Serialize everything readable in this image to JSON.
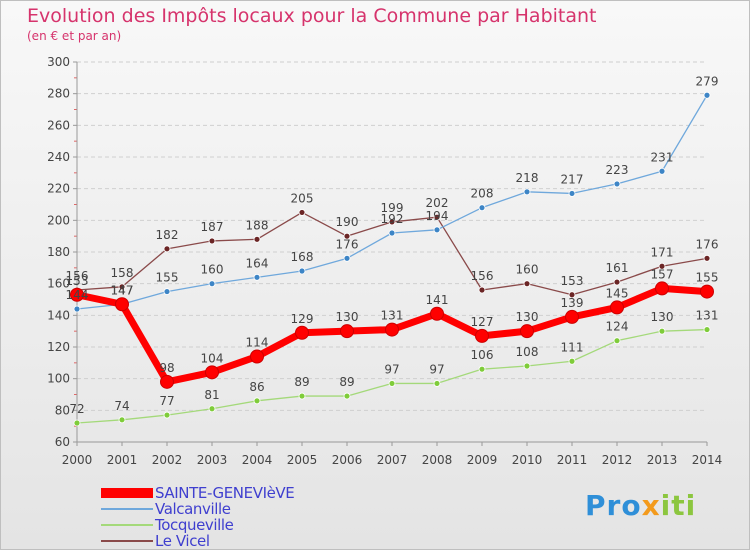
{
  "header": {
    "title": "Evolution des Impôts locaux pour la Commune par Habitant",
    "subtitle": "(en € et par an)"
  },
  "logo": {
    "text": "Proxiti"
  },
  "chart_data": {
    "type": "line",
    "x": [
      "2000",
      "2001",
      "2002",
      "2003",
      "2004",
      "2005",
      "2006",
      "2007",
      "2008",
      "2009",
      "2010",
      "2011",
      "2012",
      "2013",
      "2014"
    ],
    "ylim": [
      60,
      300
    ],
    "yticks": [
      60,
      80,
      100,
      120,
      140,
      160,
      180,
      200,
      220,
      240,
      260,
      280,
      300
    ],
    "grid": "horizontal dashed",
    "legend_position": "bottom-left",
    "series": [
      {
        "name": "SAINTE-GENEVIèVE",
        "color": "#ff0000",
        "width": 7,
        "values": [
          153,
          147,
          98,
          104,
          114,
          129,
          130,
          131,
          141,
          127,
          130,
          139,
          145,
          157,
          155
        ]
      },
      {
        "name": "Valcanville",
        "color": "#6fa8dc",
        "marker": "#3d85c6",
        "width": 1.3,
        "values": [
          144,
          147,
          155,
          160,
          164,
          168,
          176,
          192,
          194,
          208,
          218,
          217,
          223,
          231,
          279
        ]
      },
      {
        "name": "Tocqueville",
        "color": "#a4d97a",
        "marker": "#7fcc3a",
        "width": 1.3,
        "values": [
          72,
          74,
          77,
          81,
          86,
          89,
          89,
          97,
          97,
          106,
          108,
          111,
          124,
          130,
          131
        ]
      },
      {
        "name": "Le Vicel",
        "color": "#8a4a4a",
        "marker": "#6b2525",
        "width": 1.3,
        "values": [
          156,
          158,
          182,
          187,
          188,
          205,
          190,
          199,
          202,
          156,
          160,
          153,
          161,
          171,
          176
        ]
      }
    ]
  }
}
